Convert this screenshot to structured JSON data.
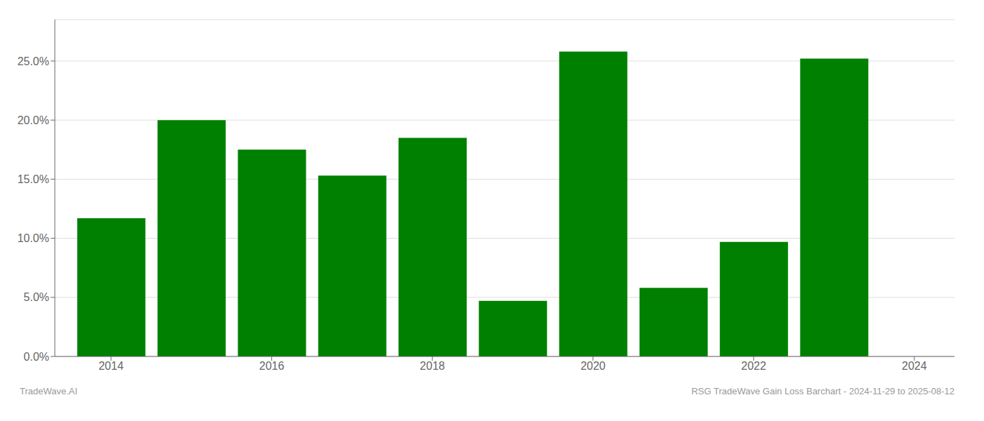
{
  "chart_data": {
    "type": "bar",
    "x": [
      2014,
      2015,
      2016,
      2017,
      2018,
      2019,
      2020,
      2021,
      2022,
      2023
    ],
    "values": [
      0.117,
      0.2,
      0.175,
      0.153,
      0.185,
      0.047,
      0.258,
      0.058,
      0.097,
      0.252
    ],
    "color": "#008000",
    "xlim": [
      2013.3,
      2024.5
    ],
    "xticks": [
      2014,
      2016,
      2018,
      2020,
      2022,
      2024
    ],
    "ylim": [
      0,
      0.285
    ],
    "yticks": [
      {
        "value": 0.0,
        "label": "0.0%"
      },
      {
        "value": 0.05,
        "label": "5.0%"
      },
      {
        "value": 0.1,
        "label": "10.0%"
      },
      {
        "value": 0.15,
        "label": "15.0%"
      },
      {
        "value": 0.2,
        "label": "20.0%"
      },
      {
        "value": 0.25,
        "label": "25.0%"
      }
    ],
    "grid": true,
    "annotations": [
      "TradeWave.AI",
      "RSG TradeWave Gain Loss Barchart - 2024-11-29 to 2025-08-12"
    ]
  }
}
